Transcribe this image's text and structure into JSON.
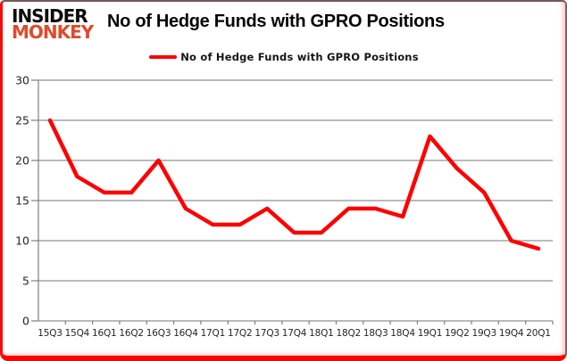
{
  "logo": {
    "line1": "INSIDER",
    "line2": "MONKEY"
  },
  "title": "No of Hedge Funds with GPRO Positions",
  "legend": {
    "label": "No of Hedge Funds with GPRO Positions"
  },
  "colors": {
    "line": "#fe0000",
    "logo_accent": "#e04a2b",
    "grid": "#919191",
    "axis": "#7f7f7f",
    "text": "#262626",
    "border_red": "#fb0205"
  },
  "chart_data": {
    "type": "line",
    "title": "No of Hedge Funds with GPRO Positions",
    "series_name": "No of Hedge Funds with GPRO Positions",
    "categories": [
      "15Q3",
      "15Q4",
      "16Q1",
      "16Q2",
      "16Q3",
      "16Q4",
      "17Q1",
      "17Q2",
      "17Q3",
      "17Q4",
      "18Q1",
      "18Q2",
      "18Q3",
      "18Q4",
      "19Q1",
      "19Q2",
      "19Q3",
      "19Q4",
      "20Q1"
    ],
    "values": [
      25,
      18,
      16,
      16,
      20,
      14,
      12,
      12,
      14,
      11,
      11,
      14,
      14,
      13,
      23,
      19,
      16,
      10,
      9
    ],
    "xlabel": "",
    "ylabel": "",
    "ylim": [
      0,
      30
    ],
    "yticks": [
      0,
      5,
      10,
      15,
      20,
      25,
      30
    ],
    "grid": true,
    "legend_position": "top-center",
    "line_color": "#fe0000"
  }
}
